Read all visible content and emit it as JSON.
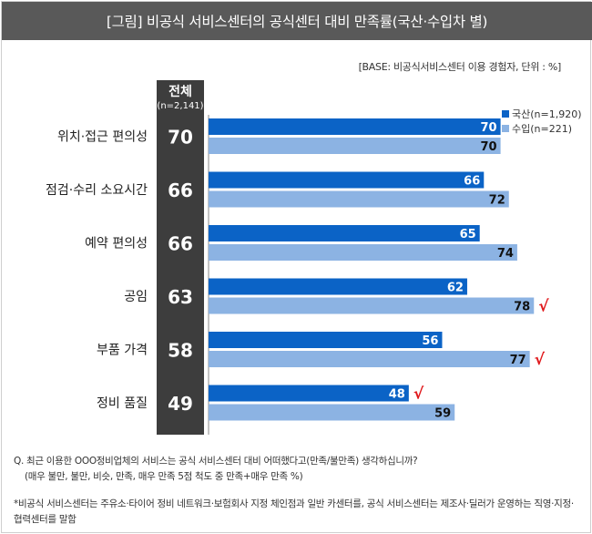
{
  "title": "[그림] 비공식 서비스센터의 공식센터 대비 만족률(국산·수입차 별)",
  "base_note": "[BASE: 비공식서비스센터 이용 경험자, 단위 : %]",
  "question": "Q. 최근 이용한 OOO정비업체의 서비스는 공식 서비스센터 대비 어떠했다고(만족/불만족) 생각하십니까?",
  "question_sub": "(매우 불만, 불만, 비슷, 만족, 매우 만족 5점 척도 중 만족+매우 만족 %)",
  "footnote": "*비공식 서비스센터는 주유소·타이어 정비 네트워크·보험회사 지정 체인점과 일반 카센터를,  공식 서비스센터는 제조사·딜러가 운영하는 직영·지정·협력센터를 말함",
  "colors": {
    "domestic": "#0b63c6",
    "import": "#8cb3e3",
    "total_box": "#3d3d3d",
    "check": "#e0191c",
    "title_bg": "#595959"
  },
  "chart_data": {
    "type": "bar",
    "orientation": "horizontal",
    "total_header": "전체",
    "total_n": "(n=2,141)",
    "categories": [
      "위치·접근 편의성",
      "점검·수리 소요시간",
      "예약 편의성",
      "공임",
      "부품 가격",
      "정비 품질"
    ],
    "totals": [
      70,
      66,
      66,
      63,
      58,
      49
    ],
    "series": [
      {
        "name": "국산(n=1,920)",
        "values": [
          70,
          66,
          65,
          62,
          56,
          48
        ]
      },
      {
        "name": "수입(n=221)",
        "values": [
          70,
          72,
          74,
          78,
          77,
          59
        ]
      }
    ],
    "check_marks": [
      {
        "series": 0,
        "category": 5
      },
      {
        "series": 1,
        "category": 3
      },
      {
        "series": 1,
        "category": 4
      }
    ],
    "check_symbol": "√",
    "legend_position": "top-right",
    "xlim": [
      0,
      100
    ],
    "grid": false
  }
}
